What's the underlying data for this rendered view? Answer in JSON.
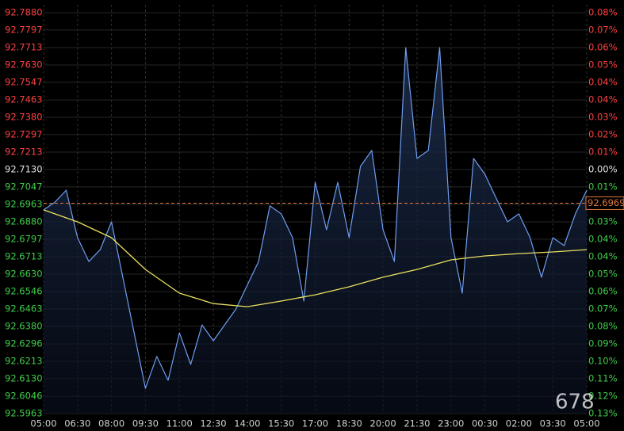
{
  "chart_data": {
    "type": "line",
    "xlim": [
      0,
      24
    ],
    "xticks": [
      {
        "value": 0,
        "label": "05:00"
      },
      {
        "value": 1.5,
        "label": "06:30"
      },
      {
        "value": 3,
        "label": "08:00"
      },
      {
        "value": 4.5,
        "label": "09:30"
      },
      {
        "value": 6,
        "label": "11:00"
      },
      {
        "value": 7.5,
        "label": "12:30"
      },
      {
        "value": 9,
        "label": "14:00"
      },
      {
        "value": 10.5,
        "label": "15:30"
      },
      {
        "value": 12,
        "label": "17:00"
      },
      {
        "value": 13.5,
        "label": "18:30"
      },
      {
        "value": 15,
        "label": "20:00"
      },
      {
        "value": 16.5,
        "label": "21:30"
      },
      {
        "value": 18,
        "label": "23:00"
      },
      {
        "value": 19.5,
        "label": "00:30"
      },
      {
        "value": 21,
        "label": "02:00"
      },
      {
        "value": 22.5,
        "label": "03:30"
      },
      {
        "value": 24,
        "label": "05:00"
      }
    ],
    "ylim": [
      92.5963,
      92.788
    ],
    "yticks": [
      {
        "value": 92.788,
        "label": "92.7880"
      },
      92.7797,
      92.7713,
      {
        "value": 92.763,
        "label": "92.7630"
      },
      92.7547,
      92.7463,
      {
        "value": 92.738,
        "label": "92.7380"
      },
      92.7297,
      92.7213,
      {
        "value": 92.713,
        "label": "92.7130"
      },
      92.7047,
      92.6963,
      {
        "value": 92.688,
        "label": "92.6880"
      },
      92.6797,
      92.6713,
      {
        "value": 92.663,
        "label": "92.6630"
      },
      92.6546,
      92.6463,
      {
        "value": 92.638,
        "label": "92.6380"
      },
      92.6296,
      92.6213,
      {
        "value": 92.613,
        "label": "92.6130"
      },
      92.6046,
      92.5963
    ],
    "y2lim": [
      -0.1259,
      0.0809
    ],
    "y2ticks": [
      {
        "value": 0.0809,
        "label": "0.08%"
      },
      {
        "value": 0.0719,
        "label": "0.07%"
      },
      {
        "value": 0.0629,
        "label": "0.06%"
      },
      {
        "value": 0.0539,
        "label": "0.05%"
      },
      {
        "value": 0.0449,
        "label": "0.04%"
      },
      {
        "value": 0.0359,
        "label": "0.04%"
      },
      {
        "value": 0.027,
        "label": "0.03%"
      },
      {
        "value": 0.018,
        "label": "0.02%"
      },
      {
        "value": 0.009,
        "label": "0.01%"
      },
      {
        "value": 0,
        "label": "0.00%"
      },
      {
        "value": -0.009,
        "label": "0.01%"
      },
      {
        "value": -0.018,
        "label": "0.02%"
      },
      {
        "value": -0.027,
        "label": "0.03%"
      },
      {
        "value": -0.0359,
        "label": "0.04%"
      },
      {
        "value": -0.0449,
        "label": "0.04%"
      },
      {
        "value": -0.0539,
        "label": "0.05%"
      },
      {
        "value": -0.063,
        "label": "0.06%"
      },
      {
        "value": -0.0719,
        "label": "0.07%"
      },
      {
        "value": -0.0809,
        "label": "0.08%"
      },
      {
        "value": -0.09,
        "label": "0.09%"
      },
      {
        "value": -0.0989,
        "label": "0.10%"
      },
      {
        "value": -0.1079,
        "label": "0.11%"
      },
      {
        "value": -0.1169,
        "label": "0.12%"
      },
      {
        "value": -0.1259,
        "label": "0.13%"
      }
    ],
    "tick_colors": {
      "up": "#ff4040",
      "flat": "#e6e6e6",
      "down": "#3ecf4a"
    },
    "grid": true,
    "last_price": 92.6969,
    "last_price_color": "#e0783a",
    "series": [
      {
        "color": "#6f9df0",
        "x": [
          0,
          0.5,
          1,
          1.5,
          2,
          2.5,
          3,
          3.5,
          4,
          4.5,
          5,
          5.5,
          6,
          6.5,
          7,
          7.5,
          8,
          8.5,
          9,
          9.5,
          10,
          10.5,
          11,
          11.5,
          12,
          12.5,
          13,
          13.5,
          14,
          14.5,
          15,
          15.5,
          16,
          16.5,
          17,
          17.5,
          18,
          18.5,
          19,
          19.5,
          20,
          20.5,
          21,
          21.5,
          22,
          22.5,
          23,
          23.5,
          24
        ],
        "values": [
          92.6937,
          92.6974,
          92.7031,
          92.6804,
          92.669,
          92.6747,
          92.688,
          92.6615,
          92.6349,
          92.6084,
          92.6236,
          92.6122,
          92.6349,
          92.6198,
          92.6387,
          92.6311,
          92.6387,
          92.6463,
          92.6577,
          92.669,
          92.6956,
          92.6918,
          92.6804,
          92.6501,
          92.7069,
          92.6842,
          92.7069,
          92.6804,
          92.7145,
          92.7221,
          92.6842,
          92.669,
          92.7713,
          92.7183,
          92.7221,
          92.7713,
          92.6804,
          92.6539,
          92.7183,
          92.7107,
          92.6993,
          92.688,
          92.6918,
          92.6804,
          92.6615,
          92.6804,
          92.6766,
          92.6918,
          92.7031
        ]
      },
      {
        "color": "#e8e060",
        "x": [
          0,
          1.5,
          3,
          4.5,
          6,
          7.5,
          9,
          10.5,
          12,
          13.5,
          15,
          16.5,
          18,
          19.5,
          21,
          22.5,
          24
        ],
        "values": [
          92.6937,
          92.688,
          92.6804,
          92.6652,
          92.6539,
          92.6489,
          92.6474,
          92.6501,
          92.6531,
          92.6569,
          92.6615,
          92.6652,
          92.6698,
          92.6717,
          92.6728,
          92.6736,
          92.6747
        ]
      }
    ],
    "watermark": "678"
  }
}
